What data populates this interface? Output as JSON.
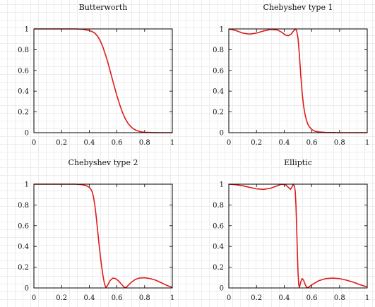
{
  "colors": {
    "curve": "#e01a1a",
    "frame": "#000000",
    "grid": "#ededed"
  },
  "chart_data": [
    {
      "type": "line",
      "title": "Butterworth",
      "xlim": [
        0,
        1
      ],
      "ylim": [
        0,
        1
      ],
      "xticks": [
        "0",
        "0.2",
        "0.4",
        "0.6",
        "0.8",
        "1"
      ],
      "yticks": [
        "0",
        "0.2",
        "0.4",
        "0.6",
        "0.8",
        "1"
      ],
      "series": [
        {
          "x": [
            0,
            0.1,
            0.2,
            0.3,
            0.35,
            0.4,
            0.42,
            0.44,
            0.46,
            0.48,
            0.5,
            0.52,
            0.54,
            0.56,
            0.58,
            0.6,
            0.62,
            0.64,
            0.66,
            0.68,
            0.7,
            0.72,
            0.74,
            0.76,
            0.78,
            0.8,
            0.85,
            0.9,
            0.95,
            1.0
          ],
          "y": [
            1,
            1,
            1,
            1,
            0.997,
            0.985,
            0.975,
            0.96,
            0.93,
            0.885,
            0.82,
            0.74,
            0.65,
            0.55,
            0.45,
            0.355,
            0.27,
            0.195,
            0.135,
            0.09,
            0.058,
            0.036,
            0.022,
            0.013,
            0.007,
            0.004,
            0.001,
            0,
            0,
            0
          ]
        }
      ]
    },
    {
      "type": "line",
      "title": "Chebyshev type 1",
      "xlim": [
        0,
        1
      ],
      "ylim": [
        0,
        1
      ],
      "xticks": [
        "0",
        "0.2",
        "0.4",
        "0.6",
        "0.8",
        "1"
      ],
      "yticks": [
        "0",
        "0.2",
        "0.4",
        "0.6",
        "0.8",
        "1"
      ],
      "series": [
        {
          "x": [
            0,
            0.05,
            0.1,
            0.15,
            0.2,
            0.25,
            0.3,
            0.35,
            0.38,
            0.41,
            0.43,
            0.45,
            0.47,
            0.48,
            0.49,
            0.5,
            0.51,
            0.52,
            0.53,
            0.54,
            0.55,
            0.56,
            0.57,
            0.58,
            0.6,
            0.62,
            0.65,
            0.7,
            0.75,
            0.8,
            0.9,
            1.0
          ],
          "y": [
            1,
            0.985,
            0.96,
            0.95,
            0.96,
            0.98,
            0.995,
            0.99,
            0.97,
            0.94,
            0.935,
            0.95,
            0.985,
            1.0,
            0.985,
            0.91,
            0.75,
            0.55,
            0.38,
            0.26,
            0.18,
            0.125,
            0.085,
            0.06,
            0.03,
            0.015,
            0.007,
            0.002,
            0.001,
            0,
            0,
            0
          ]
        }
      ]
    },
    {
      "type": "line",
      "title": "Chebyshev type 2",
      "xlim": [
        0,
        1
      ],
      "ylim": [
        0,
        1
      ],
      "xticks": [
        "0",
        "0.2",
        "0.4",
        "0.6",
        "0.8",
        "1"
      ],
      "yticks": [
        "0",
        "0.2",
        "0.4",
        "0.6",
        "0.8",
        "1"
      ],
      "series": [
        {
          "x": [
            0,
            0.1,
            0.2,
            0.3,
            0.35,
            0.38,
            0.4,
            0.41,
            0.42,
            0.43,
            0.44,
            0.45,
            0.46,
            0.47,
            0.48,
            0.49,
            0.5,
            0.51,
            0.52,
            0.53,
            0.55,
            0.57,
            0.59,
            0.61,
            0.63,
            0.65,
            0.66,
            0.67,
            0.7,
            0.73,
            0.76,
            0.8,
            0.84,
            0.88,
            0.92,
            0.96,
            1.0
          ],
          "y": [
            1,
            1,
            1,
            1,
            0.995,
            0.985,
            0.97,
            0.955,
            0.93,
            0.88,
            0.8,
            0.69,
            0.56,
            0.43,
            0.31,
            0.2,
            0.11,
            0.04,
            0.005,
            0.02,
            0.07,
            0.095,
            0.09,
            0.07,
            0.04,
            0.01,
            0.002,
            0.01,
            0.05,
            0.08,
            0.095,
            0.098,
            0.09,
            0.075,
            0.05,
            0.025,
            0.005
          ]
        }
      ]
    },
    {
      "type": "line",
      "title": "Elliptic",
      "xlim": [
        0,
        1
      ],
      "ylim": [
        0,
        1
      ],
      "xticks": [
        "0",
        "0.2",
        "0.4",
        "0.6",
        "0.8",
        "1"
      ],
      "yticks": [
        "0",
        "0.2",
        "0.4",
        "0.6",
        "0.8",
        "1"
      ],
      "series": [
        {
          "x": [
            0,
            0.05,
            0.1,
            0.15,
            0.2,
            0.25,
            0.3,
            0.35,
            0.38,
            0.41,
            0.43,
            0.445,
            0.455,
            0.465,
            0.475,
            0.48,
            0.485,
            0.49,
            0.495,
            0.5,
            0.505,
            0.51,
            0.52,
            0.53,
            0.54,
            0.55,
            0.56,
            0.57,
            0.6,
            0.65,
            0.7,
            0.75,
            0.8,
            0.85,
            0.9,
            0.95,
            1.0
          ],
          "y": [
            1,
            0.995,
            0.985,
            0.97,
            0.955,
            0.95,
            0.96,
            0.985,
            1.0,
            0.995,
            0.97,
            0.95,
            0.97,
            1.0,
            0.975,
            0.93,
            0.8,
            0.6,
            0.35,
            0.15,
            0.03,
            0.005,
            0.06,
            0.09,
            0.075,
            0.04,
            0.01,
            0.002,
            0.03,
            0.07,
            0.09,
            0.095,
            0.09,
            0.075,
            0.055,
            0.03,
            0.01
          ]
        }
      ]
    }
  ]
}
